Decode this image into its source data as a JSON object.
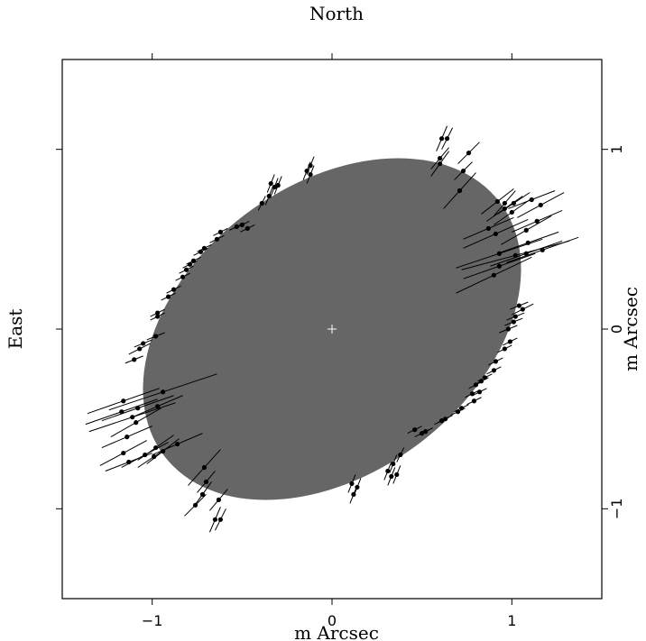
{
  "chart_data": {
    "type": "scatter",
    "title": "North",
    "xlabel": "m Arcsec",
    "ylabel": "East",
    "y2label": "m Arcsec",
    "xlim": [
      -1.5,
      1.5
    ],
    "ylim": [
      -1.5,
      1.5
    ],
    "x_ticks": [
      -1,
      0,
      1
    ],
    "y_ticks": [
      -1,
      0,
      1
    ],
    "x_tick_labels": [
      "−1",
      "0",
      "1"
    ],
    "y_tick_labels": [
      "−1",
      "0",
      "1"
    ],
    "ellipse": {
      "center": [
        0,
        0
      ],
      "semi_major": 1.17,
      "semi_minor": 0.8,
      "angle_deg": 37,
      "fill": "#666666"
    },
    "center_marker": [
      0,
      0
    ],
    "points": [
      {
        "x": 0.61,
        "y": 1.06,
        "residual": [
          0.03,
          0.07
        ]
      },
      {
        "x": 0.64,
        "y": 1.06,
        "residual": [
          0.03,
          0.06
        ]
      },
      {
        "x": 0.6,
        "y": 0.95,
        "residual": [
          0.05,
          0.06
        ]
      },
      {
        "x": 0.6,
        "y": 0.92,
        "residual": [
          0.05,
          0.07
        ]
      },
      {
        "x": 0.76,
        "y": 0.98,
        "residual": [
          0.06,
          0.06
        ]
      },
      {
        "x": 0.73,
        "y": 0.88,
        "residual": [
          0.05,
          0.05
        ]
      },
      {
        "x": 0.71,
        "y": 0.77,
        "residual": [
          0.09,
          0.1
        ]
      },
      {
        "x": 0.92,
        "y": 0.71,
        "residual": [
          0.09,
          0.07
        ]
      },
      {
        "x": 0.96,
        "y": 0.7,
        "residual": [
          0.06,
          0.07
        ]
      },
      {
        "x": 1.01,
        "y": 0.7,
        "residual": [
          0.09,
          0.06
        ]
      },
      {
        "x": 0.96,
        "y": 0.67,
        "residual": [
          0.1,
          0.07
        ]
      },
      {
        "x": 1.0,
        "y": 0.65,
        "residual": [
          0.1,
          0.07
        ]
      },
      {
        "x": 1.11,
        "y": 0.72,
        "residual": [
          0.13,
          0.05
        ]
      },
      {
        "x": 1.16,
        "y": 0.69,
        "residual": [
          0.13,
          0.07
        ]
      },
      {
        "x": 1.14,
        "y": 0.6,
        "residual": [
          0.14,
          0.06
        ]
      },
      {
        "x": 0.87,
        "y": 0.56,
        "residual": [
          0.14,
          0.06
        ]
      },
      {
        "x": 0.91,
        "y": 0.53,
        "residual": [
          0.18,
          0.08
        ]
      },
      {
        "x": 1.08,
        "y": 0.55,
        "residual": [
          0.14,
          0.08
        ]
      },
      {
        "x": 1.09,
        "y": 0.48,
        "residual": [
          0.17,
          0.06
        ]
      },
      {
        "x": 1.17,
        "y": 0.44,
        "residual": [
          0.2,
          0.07
        ]
      },
      {
        "x": 1.08,
        "y": 0.42,
        "residual": [
          0.2,
          0.07
        ]
      },
      {
        "x": 0.93,
        "y": 0.42,
        "residual": [
          0.24,
          0.08
        ]
      },
      {
        "x": 1.02,
        "y": 0.41,
        "residual": [
          0.3,
          0.08
        ]
      },
      {
        "x": 0.93,
        "y": 0.35,
        "residual": [
          0.2,
          0.07
        ]
      },
      {
        "x": 0.9,
        "y": 0.3,
        "residual": [
          0.21,
          0.1
        ]
      },
      {
        "x": 1.04,
        "y": 0.13,
        "residual": [
          0.05,
          0.02
        ]
      },
      {
        "x": 1.06,
        "y": 0.11,
        "residual": [
          0.06,
          0.03
        ]
      },
      {
        "x": 1.02,
        "y": 0.07,
        "residual": [
          0.05,
          0.02
        ]
      },
      {
        "x": 1.01,
        "y": 0.04,
        "residual": [
          0.05,
          0.02
        ]
      },
      {
        "x": 0.98,
        "y": 0.0,
        "residual": [
          0.05,
          0.02
        ]
      },
      {
        "x": 0.99,
        "y": -0.07,
        "residual": [
          0.04,
          0.02
        ]
      },
      {
        "x": 0.96,
        "y": -0.11,
        "residual": [
          0.04,
          0.02
        ]
      },
      {
        "x": 0.91,
        "y": -0.18,
        "residual": [
          0.04,
          0.02
        ]
      },
      {
        "x": 0.9,
        "y": -0.23,
        "residual": [
          0.04,
          0.02
        ]
      },
      {
        "x": 0.85,
        "y": -0.27,
        "residual": [
          0.04,
          0.02
        ]
      },
      {
        "x": 0.83,
        "y": -0.29,
        "residual": [
          0.04,
          0.02
        ]
      },
      {
        "x": 0.8,
        "y": -0.31,
        "residual": [
          0.04,
          0.02
        ]
      },
      {
        "x": 0.82,
        "y": -0.35,
        "residual": [
          0.04,
          0.02
        ]
      },
      {
        "x": 0.78,
        "y": -0.36,
        "residual": [
          0.04,
          0.02
        ]
      },
      {
        "x": 0.79,
        "y": -0.4,
        "residual": [
          0.04,
          0.02
        ]
      },
      {
        "x": 0.72,
        "y": -0.44,
        "residual": [
          0.04,
          0.02
        ]
      },
      {
        "x": 0.7,
        "y": -0.46,
        "residual": [
          0.04,
          0.02
        ]
      },
      {
        "x": 0.63,
        "y": -0.5,
        "residual": [
          0.04,
          0.02
        ]
      },
      {
        "x": 0.61,
        "y": -0.51,
        "residual": [
          0.04,
          0.02
        ]
      },
      {
        "x": 0.52,
        "y": -0.57,
        "residual": [
          0.04,
          0.02
        ]
      },
      {
        "x": 0.5,
        "y": -0.58,
        "residual": [
          0.04,
          0.02
        ]
      },
      {
        "x": 0.46,
        "y": -0.56,
        "residual": [
          0.04,
          0.02
        ]
      },
      {
        "x": 0.38,
        "y": -0.7,
        "residual": [
          0.02,
          0.04
        ]
      },
      {
        "x": 0.34,
        "y": -0.75,
        "residual": [
          0.02,
          0.05
        ]
      },
      {
        "x": 0.31,
        "y": -0.79,
        "residual": [
          0.02,
          0.05
        ]
      },
      {
        "x": 0.33,
        "y": -0.82,
        "residual": [
          0.02,
          0.05
        ]
      },
      {
        "x": 0.36,
        "y": -0.81,
        "residual": [
          0.02,
          0.05
        ]
      },
      {
        "x": 0.11,
        "y": -0.86,
        "residual": [
          0.02,
          0.05
        ]
      },
      {
        "x": 0.14,
        "y": -0.88,
        "residual": [
          0.02,
          0.05
        ]
      },
      {
        "x": 0.12,
        "y": -0.92,
        "residual": [
          0.02,
          0.05
        ]
      },
      {
        "x": -0.65,
        "y": -1.06,
        "residual": [
          -0.03,
          -0.07
        ]
      },
      {
        "x": -0.62,
        "y": -1.06,
        "residual": [
          -0.03,
          -0.06
        ]
      },
      {
        "x": -0.63,
        "y": -0.95,
        "residual": [
          -0.05,
          -0.06
        ]
      },
      {
        "x": -0.72,
        "y": -0.92,
        "residual": [
          -0.05,
          -0.07
        ]
      },
      {
        "x": -0.7,
        "y": -0.85,
        "residual": [
          -0.05,
          -0.06
        ]
      },
      {
        "x": -0.76,
        "y": -0.98,
        "residual": [
          -0.06,
          -0.06
        ]
      },
      {
        "x": -0.71,
        "y": -0.77,
        "residual": [
          -0.09,
          -0.1
        ]
      },
      {
        "x": -0.94,
        "y": -0.68,
        "residual": [
          -0.09,
          -0.07
        ]
      },
      {
        "x": -0.99,
        "y": -0.71,
        "residual": [
          -0.09,
          -0.06
        ]
      },
      {
        "x": -1.04,
        "y": -0.7,
        "residual": [
          -0.13,
          -0.07
        ]
      },
      {
        "x": -0.98,
        "y": -0.66,
        "residual": [
          -0.1,
          -0.07
        ]
      },
      {
        "x": -0.86,
        "y": -0.64,
        "residual": [
          -0.14,
          -0.06
        ]
      },
      {
        "x": -1.13,
        "y": -0.74,
        "residual": [
          -0.13,
          -0.05
        ]
      },
      {
        "x": -1.16,
        "y": -0.69,
        "residual": [
          -0.13,
          -0.07
        ]
      },
      {
        "x": -1.14,
        "y": -0.6,
        "residual": [
          -0.14,
          -0.06
        ]
      },
      {
        "x": -1.09,
        "y": -0.52,
        "residual": [
          -0.14,
          -0.08
        ]
      },
      {
        "x": -0.97,
        "y": -0.43,
        "residual": [
          -0.14,
          -0.06
        ]
      },
      {
        "x": -1.08,
        "y": -0.44,
        "residual": [
          -0.2,
          -0.07
        ]
      },
      {
        "x": -1.17,
        "y": -0.46,
        "residual": [
          -0.2,
          -0.07
        ]
      },
      {
        "x": -1.16,
        "y": -0.4,
        "residual": [
          -0.2,
          -0.07
        ]
      },
      {
        "x": -1.11,
        "y": -0.49,
        "residual": [
          -0.24,
          -0.08
        ]
      },
      {
        "x": -0.94,
        "y": -0.35,
        "residual": [
          -0.3,
          -0.1
        ]
      },
      {
        "x": -1.1,
        "y": -0.17,
        "residual": [
          -0.05,
          -0.02
        ]
      },
      {
        "x": -1.07,
        "y": -0.11,
        "residual": [
          -0.06,
          -0.03
        ]
      },
      {
        "x": -1.05,
        "y": -0.08,
        "residual": [
          -0.05,
          -0.02
        ]
      },
      {
        "x": -0.98,
        "y": -0.04,
        "residual": [
          -0.05,
          -0.02
        ]
      },
      {
        "x": -0.97,
        "y": 0.07,
        "residual": [
          -0.04,
          -0.02
        ]
      },
      {
        "x": -0.97,
        "y": 0.09,
        "residual": [
          -0.04,
          -0.02
        ]
      },
      {
        "x": -0.91,
        "y": 0.18,
        "residual": [
          -0.04,
          -0.02
        ]
      },
      {
        "x": -0.88,
        "y": 0.22,
        "residual": [
          -0.04,
          -0.02
        ]
      },
      {
        "x": -0.83,
        "y": 0.29,
        "residual": [
          -0.04,
          -0.02
        ]
      },
      {
        "x": -0.81,
        "y": 0.33,
        "residual": [
          -0.04,
          -0.02
        ]
      },
      {
        "x": -0.79,
        "y": 0.36,
        "residual": [
          -0.04,
          -0.02
        ]
      },
      {
        "x": -0.77,
        "y": 0.38,
        "residual": [
          -0.04,
          -0.02
        ]
      },
      {
        "x": -0.73,
        "y": 0.43,
        "residual": [
          -0.04,
          -0.02
        ]
      },
      {
        "x": -0.71,
        "y": 0.45,
        "residual": [
          -0.04,
          -0.02
        ]
      },
      {
        "x": -0.64,
        "y": 0.5,
        "residual": [
          -0.04,
          -0.02
        ]
      },
      {
        "x": -0.62,
        "y": 0.54,
        "residual": [
          -0.04,
          -0.02
        ]
      },
      {
        "x": -0.53,
        "y": 0.57,
        "residual": [
          -0.04,
          -0.02
        ]
      },
      {
        "x": -0.5,
        "y": 0.58,
        "residual": [
          -0.04,
          -0.02
        ]
      },
      {
        "x": -0.47,
        "y": 0.56,
        "residual": [
          -0.04,
          -0.02
        ]
      },
      {
        "x": -0.39,
        "y": 0.7,
        "residual": [
          -0.02,
          -0.04
        ]
      },
      {
        "x": -0.35,
        "y": 0.74,
        "residual": [
          -0.02,
          -0.05
        ]
      },
      {
        "x": -0.32,
        "y": 0.79,
        "residual": [
          -0.02,
          -0.05
        ]
      },
      {
        "x": -0.34,
        "y": 0.81,
        "residual": [
          -0.02,
          -0.05
        ]
      },
      {
        "x": -0.3,
        "y": 0.8,
        "residual": [
          -0.02,
          -0.05
        ]
      },
      {
        "x": -0.12,
        "y": 0.86,
        "residual": [
          -0.02,
          -0.05
        ]
      },
      {
        "x": -0.14,
        "y": 0.88,
        "residual": [
          -0.02,
          -0.05
        ]
      },
      {
        "x": -0.12,
        "y": 0.91,
        "residual": [
          -0.02,
          -0.05
        ]
      }
    ],
    "grid": false,
    "point_color": "#000000",
    "line_color": "#000000"
  }
}
